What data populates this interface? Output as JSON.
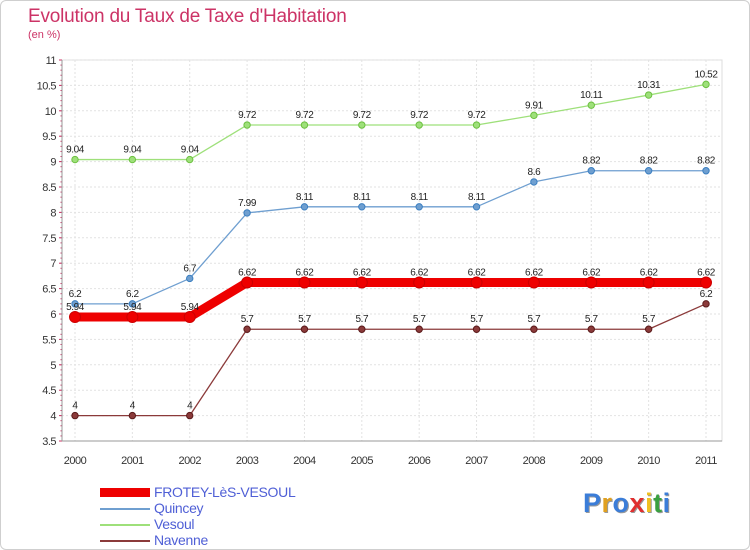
{
  "title": "Evolution du Taux de Taxe d'Habitation",
  "subtitle": "(en %)",
  "logo": {
    "text": "Proxiti",
    "colors": [
      "#3b7dd8",
      "#e0a020",
      "#3b7dd8",
      "#e03030",
      "#f0c020",
      "#3aa040",
      "#3b7dd8"
    ]
  },
  "chart_data": {
    "type": "line",
    "title": "Evolution du Taux de Taxe d'Habitation",
    "ylabel": "(en %)",
    "xlabel": "",
    "x": [
      2000,
      2001,
      2002,
      2003,
      2004,
      2005,
      2006,
      2007,
      2008,
      2009,
      2010,
      2011
    ],
    "x_tick_labels": [
      "2000",
      "2001",
      "2002",
      "2003",
      "2004",
      "2005",
      "2006",
      "2007",
      "2008",
      "2009",
      "2010",
      "2011"
    ],
    "ylim": [
      3.5,
      11
    ],
    "y_ticks": [
      3.5,
      4,
      4.5,
      5,
      5.5,
      6,
      6.5,
      7,
      7.5,
      8,
      8.5,
      9,
      9.5,
      10,
      10.5,
      11
    ],
    "y_tick_labels": [
      "3.5",
      "4",
      "4.5",
      "5",
      "5.5",
      "6",
      "6.5",
      "7",
      "7.5",
      "8",
      "8.5",
      "9",
      "9.5",
      "10",
      "10.5",
      "11"
    ],
    "grid": true,
    "legend_position": "bottom-left",
    "series": [
      {
        "name": "FROTEY-LèS-VESOUL",
        "color": "#ee0000",
        "dot": "#cc0000",
        "thick": true,
        "values": [
          5.94,
          5.94,
          5.94,
          6.62,
          6.62,
          6.62,
          6.62,
          6.62,
          6.62,
          6.62,
          6.62,
          6.62
        ],
        "labels": [
          "5.94",
          "5.94",
          "5.94",
          "6.62",
          "6.62",
          "6.62",
          "6.62",
          "6.62",
          "6.62",
          "6.62",
          "6.62",
          "6.62"
        ]
      },
      {
        "name": "Quincey",
        "color": "#6f9fd0",
        "dot": "#3a7ec0",
        "thick": false,
        "values": [
          6.2,
          6.2,
          6.7,
          7.99,
          8.11,
          8.11,
          8.11,
          8.11,
          8.6,
          8.82,
          8.82,
          8.82
        ],
        "labels": [
          "6.2",
          "6.2",
          "6.7",
          "7.99",
          "8.11",
          "8.11",
          "8.11",
          "8.11",
          "8.6",
          "8.82",
          "8.82",
          "8.82"
        ]
      },
      {
        "name": "Vesoul",
        "color": "#9ee07a",
        "dot": "#6cc040",
        "thick": false,
        "values": [
          9.04,
          9.04,
          9.04,
          9.72,
          9.72,
          9.72,
          9.72,
          9.72,
          9.91,
          10.11,
          10.31,
          10.52
        ],
        "labels": [
          "9.04",
          "9.04",
          "9.04",
          "9.72",
          "9.72",
          "9.72",
          "9.72",
          "9.72",
          "9.91",
          "10.11",
          "10.31",
          "10.52"
        ]
      },
      {
        "name": "Navenne",
        "color": "#8b3a3a",
        "dot": "#5a1a1a",
        "thick": false,
        "values": [
          4,
          4,
          4,
          5.7,
          5.7,
          5.7,
          5.7,
          5.7,
          5.7,
          5.7,
          5.7,
          6.2
        ],
        "labels": [
          "4",
          "4",
          "4",
          "5.7",
          "5.7",
          "5.7",
          "5.7",
          "5.7",
          "5.7",
          "5.7",
          "5.7",
          "6.2"
        ]
      }
    ]
  }
}
